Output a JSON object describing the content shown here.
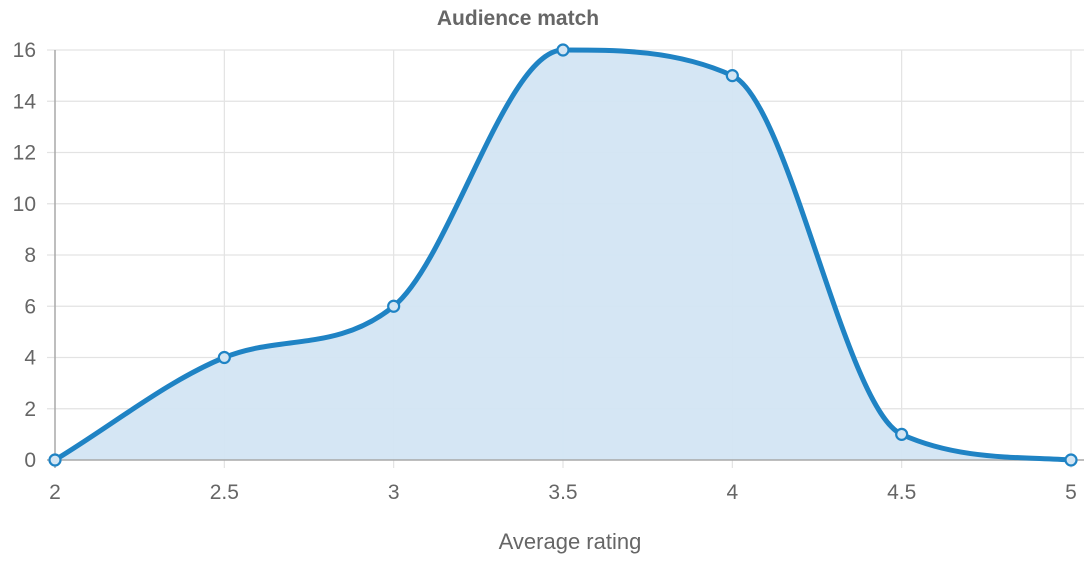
{
  "chart_data": {
    "type": "area",
    "title": "Audience match",
    "xlabel": "Average rating",
    "ylabel": "",
    "x": [
      2,
      2.5,
      3,
      3.5,
      4,
      4.5,
      5
    ],
    "series": [
      {
        "values": [
          0,
          4,
          6,
          16,
          15,
          1,
          0
        ]
      }
    ],
    "xticks": [
      "2",
      "2.5",
      "3",
      "3.5",
      "4",
      "4.5",
      "5"
    ],
    "yticks": [
      "0",
      "2",
      "4",
      "6",
      "8",
      "10",
      "12",
      "14",
      "16"
    ],
    "xlim": [
      2,
      5
    ],
    "ylim": [
      0,
      16
    ],
    "grid": true,
    "colors": {
      "line": "#1f83c4",
      "fill": "#d3e5f3",
      "text": "#666666",
      "grid": "#e3e3e3"
    }
  }
}
